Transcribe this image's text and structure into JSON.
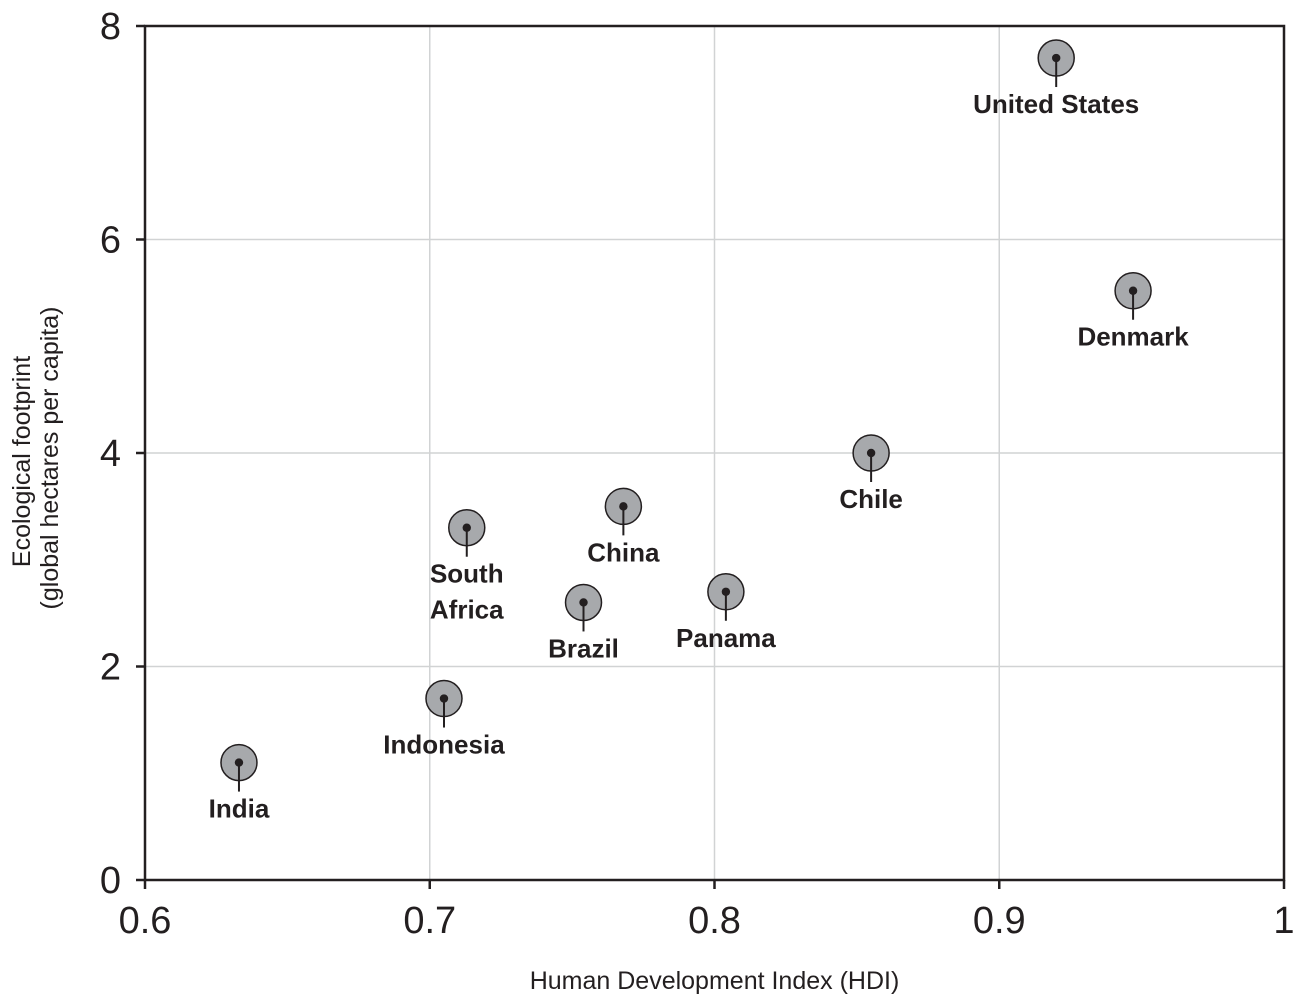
{
  "chart_data": {
    "type": "scatter",
    "title": "",
    "xlabel": "Human Development Index (HDI)",
    "ylabel_lines": [
      "Ecological footprint",
      "(global hectares per capita)"
    ],
    "xlim": [
      0.6,
      1.0
    ],
    "ylim": [
      0,
      8
    ],
    "xticks": [
      0.6,
      0.7,
      0.8,
      0.9,
      1.0
    ],
    "xtick_labels": [
      "0.6",
      "0.7",
      "0.8",
      "0.9",
      "1"
    ],
    "yticks": [
      0,
      2,
      4,
      6,
      8
    ],
    "ytick_labels": [
      "0",
      "2",
      "4",
      "6",
      "8"
    ],
    "grid": true,
    "legend": "none",
    "colors": {
      "marker_fill": "#a7a9ac",
      "marker_stroke": "#231f20",
      "grid": "#d1d3d4",
      "axis": "#231f20"
    },
    "points": [
      {
        "label_lines": [
          "United States"
        ],
        "x": 0.92,
        "y": 7.7
      },
      {
        "label_lines": [
          "Denmark"
        ],
        "x": 0.947,
        "y": 5.52
      },
      {
        "label_lines": [
          "Chile"
        ],
        "x": 0.855,
        "y": 4.0
      },
      {
        "label_lines": [
          "China"
        ],
        "x": 0.768,
        "y": 3.5
      },
      {
        "label_lines": [
          "South",
          "Africa"
        ],
        "x": 0.713,
        "y": 3.3
      },
      {
        "label_lines": [
          "Panama"
        ],
        "x": 0.804,
        "y": 2.7
      },
      {
        "label_lines": [
          "Brazil"
        ],
        "x": 0.754,
        "y": 2.6
      },
      {
        "label_lines": [
          "Indonesia"
        ],
        "x": 0.705,
        "y": 1.7
      },
      {
        "label_lines": [
          "India"
        ],
        "x": 0.633,
        "y": 1.1
      }
    ]
  }
}
